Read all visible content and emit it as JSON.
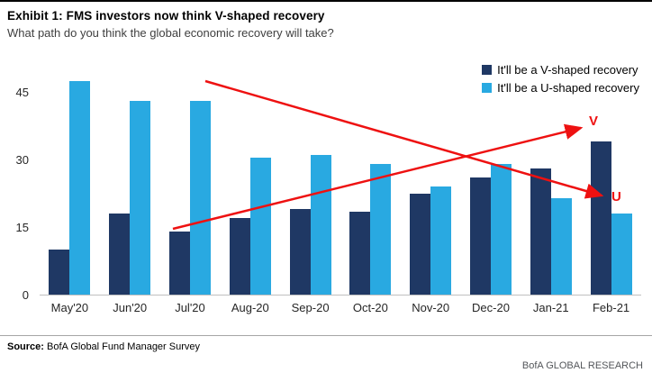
{
  "chart_data": {
    "type": "bar",
    "title": "Exhibit 1: FMS investors now think V-shaped recovery",
    "subtitle": "What path do you think the global economic recovery will take?",
    "categories": [
      "May'20",
      "Jun'20",
      "Jul'20",
      "Aug-20",
      "Sep-20",
      "Oct-20",
      "Nov-20",
      "Dec-20",
      "Jan-21",
      "Feb-21"
    ],
    "series": [
      {
        "name": "It'll be a V-shaped recovery",
        "color": "#1f3864",
        "values": [
          10,
          18,
          14,
          17,
          19,
          18.5,
          22.5,
          26,
          28,
          34
        ]
      },
      {
        "name": "It'll be a U-shaped recovery",
        "color": "#29a9e1",
        "values": [
          47.5,
          43,
          43,
          30.5,
          31,
          29,
          24,
          29,
          21.5,
          18
        ]
      }
    ],
    "xlabel": "",
    "ylabel": "",
    "ylim": [
      0,
      50
    ],
    "yticks": [
      0,
      15,
      30,
      45
    ],
    "grid": false,
    "legend_position": "top-right",
    "annotation_color": "#ee1111",
    "annotations": [
      {
        "label": "V",
        "direction": "up"
      },
      {
        "label": "U",
        "direction": "down"
      }
    ]
  },
  "footer": {
    "source_label": "Source:",
    "source_text": " BofA Global Fund Manager Survey",
    "brand": "BofA GLOBAL RESEARCH"
  }
}
